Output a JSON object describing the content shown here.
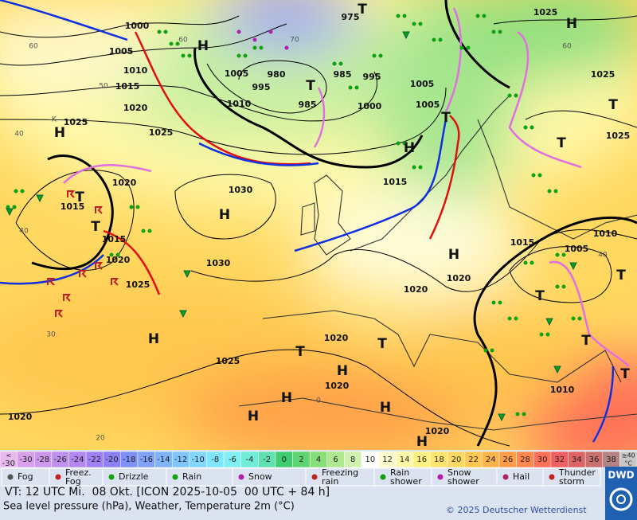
{
  "map": {
    "pressure_labels": [
      "1000",
      "1005",
      "1010",
      "1015",
      "1020",
      "1025",
      "1025",
      "1005",
      "995",
      "980",
      "985",
      "995",
      "985",
      "1000",
      "1010",
      "975",
      "1005",
      "1005",
      "1025",
      "1025",
      "1025",
      "1020",
      "1015",
      "1030",
      "1015",
      "1015",
      "1020",
      "1025",
      "1030",
      "1015",
      "1010",
      "1005",
      "1020",
      "1020",
      "1020",
      "1025",
      "1020",
      "1010",
      "1020",
      "1020"
    ],
    "grid_labels": [
      "60",
      "50",
      "40",
      "40",
      "30",
      "20",
      "0",
      "70",
      "60",
      "60",
      "40",
      "K"
    ],
    "systems": [
      "H",
      "T",
      "T",
      "H",
      "T",
      "H",
      "T",
      "H",
      "H",
      "T",
      "T",
      "T",
      "H",
      "T",
      "T",
      "H",
      "T",
      "T",
      "H",
      "H",
      "H",
      "H",
      "H",
      "T",
      "T"
    ]
  },
  "legend": {
    "scale": {
      "low": {
        "top": "<",
        "bottom": "-30"
      },
      "labels": [
        "-30",
        "-28",
        "-26",
        "-24",
        "-22",
        "-20",
        "-18",
        "-16",
        "-14",
        "-12",
        "-10",
        "-8",
        "-6",
        "-4",
        "-2",
        "0",
        "2",
        "4",
        "6",
        "8",
        "10",
        "12",
        "14",
        "16",
        "18",
        "20",
        "22",
        "24",
        "26",
        "28",
        "30",
        "32",
        "34",
        "36",
        "38"
      ],
      "colors": [
        "#d8a0e8",
        "#cc98ec",
        "#c090ee",
        "#b288f0",
        "#a080f2",
        "#8c80f4",
        "#8090f6",
        "#80a2f8",
        "#80b4fa",
        "#80c6fc",
        "#80d8fe",
        "#80e6ff",
        "#80f0f4",
        "#70ecd8",
        "#60e0b0",
        "#40cc70",
        "#60d470",
        "#88de78",
        "#aee890",
        "#d0f2b0",
        "#ffffff",
        "#fffcd0",
        "#fff8a8",
        "#fff084",
        "#ffe470",
        "#ffd860",
        "#ffc850",
        "#ffb448",
        "#ff9c48",
        "#ff8850",
        "#ff7058",
        "#f06060",
        "#dc6464",
        "#c87070",
        "#b48484"
      ],
      "high": {
        "top": "≥40",
        "bottom": "°C"
      }
    },
    "symbols": [
      "Fog",
      "Freez.\nFog",
      "Drizzle",
      "Rain",
      "Snow",
      "Freezing\nrain",
      "Rain\nshower",
      "Snow\nshower",
      "Hail",
      "Thunder\nstorm"
    ]
  },
  "footer": {
    "valid_time": "VT: 12 UTC Mi.  08 Okt. [ICON 2025-10-05  00 UTC + 84 h]",
    "description": "Sea level pressure (hPa), Weather, Temperature 2m (°C)",
    "copyright": "© 2025 Deutscher Wetterdienst",
    "logo": "DWD"
  }
}
